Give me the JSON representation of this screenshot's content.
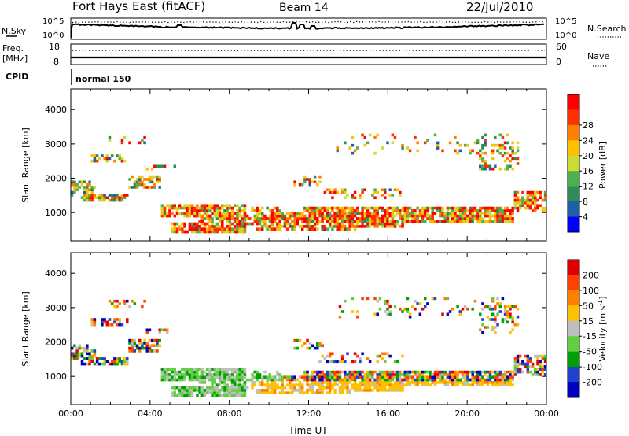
{
  "header": {
    "station": "Fort Hays East (fitACF)",
    "beam": "Beam 14",
    "date": "22/Jul/2010"
  },
  "chart_data": [
    {
      "type": "line",
      "id": "noise",
      "left_label": "N.Sky",
      "right_label": "N.Search",
      "left_ticks": [
        "10^5",
        "10^0"
      ],
      "right_ticks": [
        "10^5",
        "10^0"
      ],
      "series": [
        {
          "name": "N.Sky",
          "style": "solid"
        },
        {
          "name": "N.Search",
          "style": "dotted"
        }
      ]
    },
    {
      "type": "line",
      "id": "freq-nave",
      "left_label_line1": "Freq.",
      "left_label_line2": "[MHz]",
      "right_label": "Nave",
      "left_ticks": [
        "18",
        "8"
      ],
      "right_ticks": [
        "60",
        "0"
      ],
      "series": [
        {
          "name": "Freq.",
          "style": "solid"
        },
        {
          "name": "Nave",
          "style": "dotted"
        }
      ]
    },
    {
      "type": "text",
      "id": "cpid",
      "label": "CPID",
      "value": "normal 150"
    },
    {
      "type": "heatmap",
      "id": "power",
      "xlabel": "",
      "ylabel": "Slant Range [km]",
      "x_ticks": [
        "00:00",
        "04:00",
        "08:00",
        "12:00",
        "16:00",
        "20:00",
        "00:00"
      ],
      "y_ticks": [
        "1000",
        "2000",
        "3000",
        "4000"
      ],
      "ylim": [
        180,
        4600
      ],
      "colorbar_label": "Power [dB]",
      "colorbar_ticks": [
        "4",
        "8",
        "12",
        "16",
        "20",
        "24",
        "28"
      ],
      "colors": [
        "#0000ff",
        "#1f5fa8",
        "#2e8b57",
        "#4caf50",
        "#c8dc32",
        "#ffc000",
        "#ff7f00",
        "#ff3000",
        "#ff0000"
      ]
    },
    {
      "type": "heatmap",
      "id": "velocity",
      "xlabel": "Time UT",
      "ylabel": "Slant Range [km]",
      "x_ticks": [
        "00:00",
        "04:00",
        "08:00",
        "12:00",
        "16:00",
        "20:00",
        "00:00"
      ],
      "y_ticks": [
        "1000",
        "2000",
        "3000",
        "4000"
      ],
      "ylim": [
        180,
        4600
      ],
      "colorbar_label": "Velocity [m s",
      "colorbar_label_sup": "-1",
      "colorbar_label_end": "]",
      "colorbar_ticks": [
        "200",
        "100",
        "50",
        "15",
        "-15",
        "-50",
        "-100",
        "-200"
      ],
      "colors": [
        "#0000c0",
        "#2040d0",
        "#00a000",
        "#60d040",
        "#bebebe",
        "#ffc000",
        "#ff8000",
        "#ff4000",
        "#e00000"
      ]
    }
  ]
}
